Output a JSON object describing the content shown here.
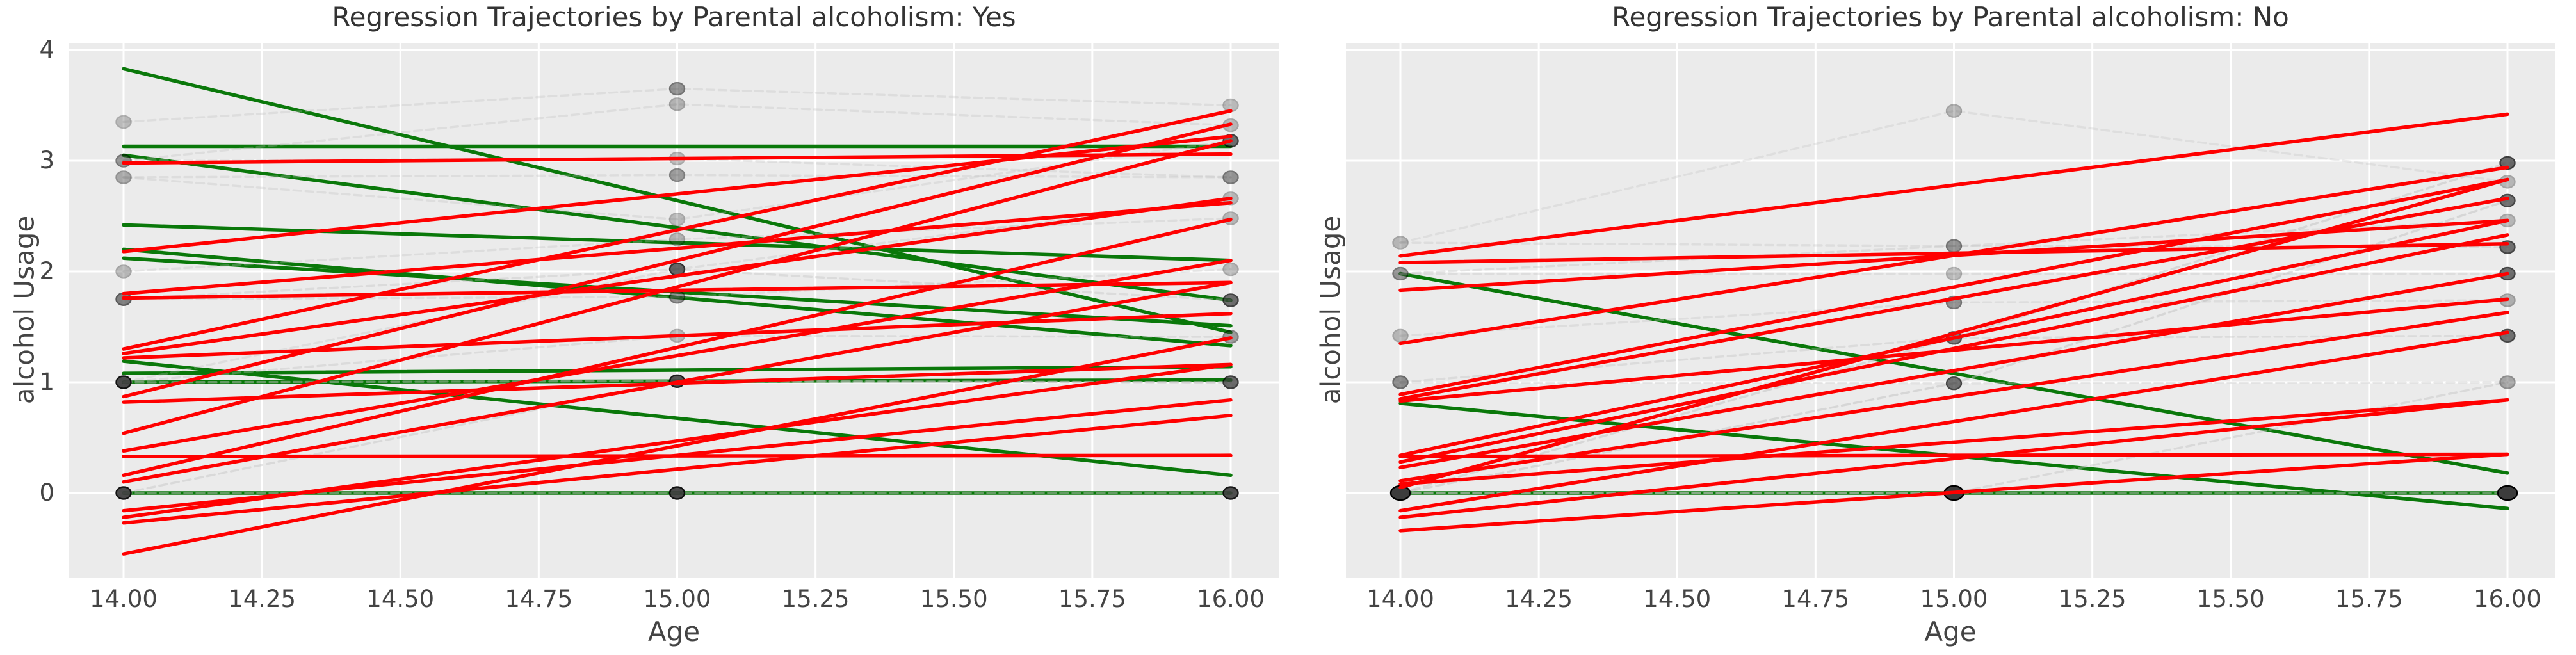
{
  "colors": {
    "red": "#ff0000",
    "green": "#0a780a",
    "marker": "#3c3c3c",
    "marker_edge": "#000000",
    "trajectory": "#bdbdbd",
    "grid": "#ffffff",
    "axes_background": "#ebebeb",
    "figure_background": "#ffffff",
    "text": "#444444"
  },
  "chart_data": [
    {
      "type": "line",
      "title": "Regression Trajectories by Parental alcoholism: Yes",
      "xlabel": "Age",
      "ylabel": "alcohol Usage",
      "ages": [
        14,
        15,
        16
      ],
      "xticks": [
        14.0,
        14.25,
        14.5,
        14.75,
        15.0,
        15.25,
        15.5,
        15.75,
        16.0
      ],
      "xtick_labels": [
        "14.00",
        "14.25",
        "14.50",
        "14.75",
        "15.00",
        "15.25",
        "15.50",
        "15.75",
        "16.00"
      ],
      "yticks": [
        0,
        1,
        2,
        3,
        4
      ],
      "ytick_labels": [
        "0",
        "1",
        "2",
        "3",
        "4"
      ],
      "show_ytick_labels": true,
      "xlim": [
        13.9,
        16.09
      ],
      "ylim": [
        -0.76,
        4.06
      ],
      "grid": true,
      "regression_lines": [
        {
          "color": "green",
          "y_start": 3.83,
          "y_end": 1.45
        },
        {
          "color": "green",
          "y_start": 3.13,
          "y_end": 3.13
        },
        {
          "color": "green",
          "y_start": 3.05,
          "y_end": 1.74
        },
        {
          "color": "green",
          "y_start": 2.42,
          "y_end": 2.1
        },
        {
          "color": "green",
          "y_start": 2.2,
          "y_end": 1.33
        },
        {
          "color": "green",
          "y_start": 2.12,
          "y_end": 1.51
        },
        {
          "color": "green",
          "y_start": 1.19,
          "y_end": 0.16
        },
        {
          "color": "green",
          "y_start": 1.08,
          "y_end": 1.14
        },
        {
          "color": "green",
          "y_start": 1.0,
          "y_end": 1.02
        },
        {
          "color": "green",
          "y_start": 0.0,
          "y_end": 0.0
        },
        {
          "color": "red",
          "y_start": 2.98,
          "y_end": 3.06
        },
        {
          "color": "red",
          "y_start": 2.18,
          "y_end": 3.22
        },
        {
          "color": "red",
          "y_start": 1.8,
          "y_end": 2.62
        },
        {
          "color": "red",
          "y_start": 1.76,
          "y_end": 1.9
        },
        {
          "color": "red",
          "y_start": 1.3,
          "y_end": 3.45
        },
        {
          "color": "red",
          "y_start": 1.26,
          "y_end": 2.66
        },
        {
          "color": "red",
          "y_start": 1.22,
          "y_end": 1.62
        },
        {
          "color": "red",
          "y_start": 0.87,
          "y_end": 3.33
        },
        {
          "color": "red",
          "y_start": 0.82,
          "y_end": 1.16
        },
        {
          "color": "red",
          "y_start": 0.54,
          "y_end": 3.18
        },
        {
          "color": "red",
          "y_start": 0.38,
          "y_end": 2.1
        },
        {
          "color": "red",
          "y_start": 0.33,
          "y_end": 0.34
        },
        {
          "color": "red",
          "y_start": 0.16,
          "y_end": 2.47
        },
        {
          "color": "red",
          "y_start": 0.1,
          "y_end": 1.9
        },
        {
          "color": "red",
          "y_start": -0.16,
          "y_end": 0.84
        },
        {
          "color": "red",
          "y_start": -0.22,
          "y_end": 1.16
        },
        {
          "color": "red",
          "y_start": -0.27,
          "y_end": 0.7
        },
        {
          "color": "red",
          "y_start": -0.55,
          "y_end": 1.4
        }
      ],
      "observed_trajectories": [
        {
          "y": [
            3.35,
            3.65,
            3.5
          ],
          "alpha": 0.3
        },
        {
          "y": [
            3.0,
            3.51,
            3.32
          ],
          "alpha": 0.3
        },
        {
          "y": [
            3.0,
            3.02,
            2.85
          ],
          "alpha": 0.3
        },
        {
          "y": [
            2.85,
            2.87,
            2.85
          ],
          "alpha": 0.3
        },
        {
          "y": [
            2.85,
            2.47,
            3.18
          ],
          "alpha": 0.3
        },
        {
          "y": [
            2.0,
            2.29,
            2.48
          ],
          "alpha": 0.3
        },
        {
          "y": [
            1.75,
            2.02,
            1.74
          ],
          "alpha": 0.35
        },
        {
          "y": [
            1.75,
            1.77,
            2.02
          ],
          "alpha": 0.3
        },
        {
          "y": [
            1.0,
            1.42,
            1.41
          ],
          "alpha": 0.35
        },
        {
          "y": [
            1.0,
            1.01,
            1.0
          ],
          "alpha": 0.5
        },
        {
          "y": [
            1.0,
            2.02,
            2.66
          ],
          "alpha": 0.3
        },
        {
          "y": [
            0.0,
            0.0,
            0.0
          ],
          "alpha": 0.5
        },
        {
          "y": [
            0.0,
            1.01,
            1.0
          ],
          "alpha": 0.4
        }
      ],
      "markers": [
        {
          "age": 14,
          "y": 3.35,
          "alpha": 0.28,
          "size": "normal"
        },
        {
          "age": 14,
          "y": 3.0,
          "alpha": 0.5,
          "size": "normal"
        },
        {
          "age": 14,
          "y": 2.85,
          "alpha": 0.38,
          "size": "normal"
        },
        {
          "age": 14,
          "y": 2.0,
          "alpha": 0.3,
          "size": "normal"
        },
        {
          "age": 14,
          "y": 1.75,
          "alpha": 0.62,
          "size": "normal"
        },
        {
          "age": 14,
          "y": 1.0,
          "alpha": 0.92,
          "size": "normal"
        },
        {
          "age": 14,
          "y": 0.0,
          "alpha": 0.92,
          "size": "normal"
        },
        {
          "age": 15,
          "y": 3.65,
          "alpha": 0.5,
          "size": "normal"
        },
        {
          "age": 15,
          "y": 3.51,
          "alpha": 0.32,
          "size": "normal"
        },
        {
          "age": 15,
          "y": 3.02,
          "alpha": 0.28,
          "size": "normal"
        },
        {
          "age": 15,
          "y": 2.87,
          "alpha": 0.45,
          "size": "normal"
        },
        {
          "age": 15,
          "y": 2.47,
          "alpha": 0.28,
          "size": "normal"
        },
        {
          "age": 15,
          "y": 2.29,
          "alpha": 0.32,
          "size": "normal"
        },
        {
          "age": 15,
          "y": 2.02,
          "alpha": 0.78,
          "size": "normal"
        },
        {
          "age": 15,
          "y": 1.77,
          "alpha": 0.5,
          "size": "normal"
        },
        {
          "age": 15,
          "y": 1.42,
          "alpha": 0.3,
          "size": "normal"
        },
        {
          "age": 15,
          "y": 1.01,
          "alpha": 0.88,
          "size": "normal"
        },
        {
          "age": 15,
          "y": 0.0,
          "alpha": 0.92,
          "size": "normal"
        },
        {
          "age": 16,
          "y": 3.5,
          "alpha": 0.28,
          "size": "normal"
        },
        {
          "age": 16,
          "y": 3.32,
          "alpha": 0.3,
          "size": "normal"
        },
        {
          "age": 16,
          "y": 3.18,
          "alpha": 0.72,
          "size": "normal"
        },
        {
          "age": 16,
          "y": 2.85,
          "alpha": 0.5,
          "size": "normal"
        },
        {
          "age": 16,
          "y": 2.66,
          "alpha": 0.3,
          "size": "normal"
        },
        {
          "age": 16,
          "y": 2.48,
          "alpha": 0.3,
          "size": "normal"
        },
        {
          "age": 16,
          "y": 2.02,
          "alpha": 0.3,
          "size": "normal"
        },
        {
          "age": 16,
          "y": 1.74,
          "alpha": 0.72,
          "size": "normal"
        },
        {
          "age": 16,
          "y": 1.41,
          "alpha": 0.45,
          "size": "normal"
        },
        {
          "age": 16,
          "y": 1.0,
          "alpha": 0.75,
          "size": "normal"
        },
        {
          "age": 16,
          "y": 0.0,
          "alpha": 0.9,
          "size": "normal"
        }
      ]
    },
    {
      "type": "line",
      "title": "Regression Trajectories by Parental alcoholism: No",
      "xlabel": "Age",
      "ylabel": "alcohol Usage",
      "ages": [
        14,
        15,
        16
      ],
      "xticks": [
        14.0,
        14.25,
        14.5,
        14.75,
        15.0,
        15.25,
        15.5,
        15.75,
        16.0
      ],
      "xtick_labels": [
        "14.00",
        "14.25",
        "14.50",
        "14.75",
        "15.00",
        "15.25",
        "15.50",
        "15.75",
        "16.00"
      ],
      "yticks": [
        0,
        1,
        2,
        3,
        4
      ],
      "ytick_labels": [],
      "show_ytick_labels": false,
      "xlim": [
        13.9,
        16.09
      ],
      "ylim": [
        -0.76,
        4.06
      ],
      "grid": true,
      "regression_lines": [
        {
          "color": "green",
          "y_start": 1.98,
          "y_end": 0.18
        },
        {
          "color": "green",
          "y_start": 0.81,
          "y_end": -0.14
        },
        {
          "color": "green",
          "y_start": 0.0,
          "y_end": 0.0
        },
        {
          "color": "red",
          "y_start": 2.14,
          "y_end": 3.42
        },
        {
          "color": "red",
          "y_start": 2.08,
          "y_end": 2.25
        },
        {
          "color": "red",
          "y_start": 1.83,
          "y_end": 2.46
        },
        {
          "color": "red",
          "y_start": 1.35,
          "y_end": 2.94
        },
        {
          "color": "red",
          "y_start": 0.89,
          "y_end": 2.83
        },
        {
          "color": "red",
          "y_start": 0.85,
          "y_end": 2.66
        },
        {
          "color": "red",
          "y_start": 0.83,
          "y_end": 1.75
        },
        {
          "color": "red",
          "y_start": 0.34,
          "y_end": 2.46
        },
        {
          "color": "red",
          "y_start": 0.28,
          "y_end": 2.33
        },
        {
          "color": "red",
          "y_start": 0.23,
          "y_end": 1.98
        },
        {
          "color": "red",
          "y_start": 0.11,
          "y_end": 1.63
        },
        {
          "color": "red",
          "y_start": 0.08,
          "y_end": 0.84
        },
        {
          "color": "red",
          "y_start": 0.05,
          "y_end": 2.83
        },
        {
          "color": "red",
          "y_start": 0.33,
          "y_end": 0.35
        },
        {
          "color": "red",
          "y_start": -0.16,
          "y_end": 1.45
        },
        {
          "color": "red",
          "y_start": -0.22,
          "y_end": 0.84
        },
        {
          "color": "red",
          "y_start": -0.34,
          "y_end": 0.35
        }
      ],
      "observed_trajectories": [
        {
          "y": [
            2.26,
            3.45,
            2.81
          ],
          "alpha": 0.28
        },
        {
          "y": [
            2.26,
            2.23,
            2.46
          ],
          "alpha": 0.3
        },
        {
          "y": [
            1.98,
            2.23,
            2.22
          ],
          "alpha": 0.35
        },
        {
          "y": [
            1.98,
            1.98,
            1.98
          ],
          "alpha": 0.3
        },
        {
          "y": [
            1.42,
            1.72,
            1.74
          ],
          "alpha": 0.3
        },
        {
          "y": [
            1.0,
            1.4,
            1.42
          ],
          "alpha": 0.35
        },
        {
          "y": [
            1.0,
            0.99,
            1.0
          ],
          "alpha": 0.35
        },
        {
          "y": [
            0.0,
            0.0,
            0.0
          ],
          "alpha": 0.5
        },
        {
          "y": [
            0.0,
            0.99,
            2.64
          ],
          "alpha": 0.45
        },
        {
          "y": [
            0.0,
            1.4,
            2.98
          ],
          "alpha": 0.45
        },
        {
          "y": [
            0.0,
            0.0,
            1.0
          ],
          "alpha": 0.4
        }
      ],
      "markers": [
        {
          "age": 14,
          "y": 2.26,
          "alpha": 0.3,
          "size": "normal"
        },
        {
          "age": 14,
          "y": 1.98,
          "alpha": 0.5,
          "size": "normal"
        },
        {
          "age": 14,
          "y": 1.42,
          "alpha": 0.3,
          "size": "normal"
        },
        {
          "age": 14,
          "y": 1.0,
          "alpha": 0.55,
          "size": "normal"
        },
        {
          "age": 14,
          "y": 0.0,
          "alpha": 1.0,
          "size": "large"
        },
        {
          "age": 15,
          "y": 3.45,
          "alpha": 0.3,
          "size": "normal"
        },
        {
          "age": 15,
          "y": 2.23,
          "alpha": 0.5,
          "size": "normal"
        },
        {
          "age": 15,
          "y": 1.98,
          "alpha": 0.28,
          "size": "normal"
        },
        {
          "age": 15,
          "y": 1.72,
          "alpha": 0.5,
          "size": "normal"
        },
        {
          "age": 15,
          "y": 1.4,
          "alpha": 0.65,
          "size": "normal"
        },
        {
          "age": 15,
          "y": 0.99,
          "alpha": 0.7,
          "size": "normal"
        },
        {
          "age": 15,
          "y": 0.0,
          "alpha": 1.0,
          "size": "large"
        },
        {
          "age": 16,
          "y": 2.98,
          "alpha": 0.75,
          "size": "normal"
        },
        {
          "age": 16,
          "y": 2.81,
          "alpha": 0.3,
          "size": "normal"
        },
        {
          "age": 16,
          "y": 2.64,
          "alpha": 0.7,
          "size": "normal"
        },
        {
          "age": 16,
          "y": 2.46,
          "alpha": 0.3,
          "size": "normal"
        },
        {
          "age": 16,
          "y": 2.22,
          "alpha": 0.7,
          "size": "normal"
        },
        {
          "age": 16,
          "y": 1.98,
          "alpha": 0.72,
          "size": "normal"
        },
        {
          "age": 16,
          "y": 1.74,
          "alpha": 0.35,
          "size": "normal"
        },
        {
          "age": 16,
          "y": 1.42,
          "alpha": 0.7,
          "size": "normal"
        },
        {
          "age": 16,
          "y": 1.0,
          "alpha": 0.4,
          "size": "normal"
        },
        {
          "age": 16,
          "y": 0.0,
          "alpha": 1.0,
          "size": "large"
        }
      ]
    }
  ]
}
